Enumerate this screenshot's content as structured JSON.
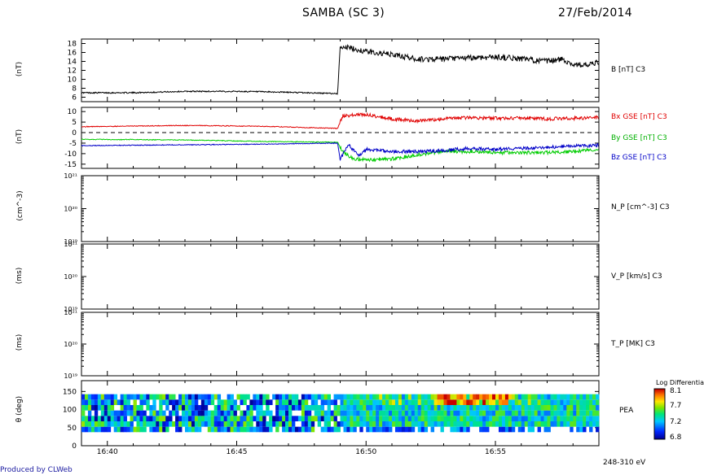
{
  "header": {
    "title": "SAMBA (SC 3)",
    "date": "27/Feb/2014"
  },
  "footer": {
    "credit": "Produced by CLWeb"
  },
  "x_axis": {
    "ticks": [
      "16:40",
      "16:45",
      "16:50",
      "16:55"
    ]
  },
  "panels": [
    {
      "unit": "(nT)",
      "label": "B [nT] C3",
      "ticks": [
        "18",
        "16",
        "14",
        "12",
        "10",
        "8",
        "6"
      ]
    },
    {
      "unit": "(nT)",
      "labels": [
        "Bx GSE [nT] C3",
        "By GSE [nT] C3",
        "Bz GSE [nT] C3"
      ],
      "ticks": [
        "10",
        "5",
        "0",
        "-5",
        "-10",
        "-15"
      ]
    },
    {
      "unit": "(cm^-3)",
      "label": "N_P [cm^-3] C3",
      "ticks": [
        "10²¹",
        "10²⁰",
        "10¹⁹"
      ]
    },
    {
      "unit": "(ms)",
      "label": "V_P [km/s] C3",
      "ticks": [
        "10²¹",
        "10²⁰",
        "10¹⁹"
      ]
    },
    {
      "unit": "(ms)",
      "label": "T_P [MK] C3",
      "ticks": [
        "10²¹",
        "10²⁰",
        "10¹⁹"
      ]
    },
    {
      "unit": "θ (deg)",
      "label": "PEA",
      "sublabel": "248-310 eV",
      "ticks": [
        "150",
        "100",
        "50",
        "0"
      ]
    }
  ],
  "colorbar": {
    "title": "Log Differential",
    "ticks": [
      "8.1",
      "7.7",
      "7.2",
      "6.8"
    ]
  },
  "colors": {
    "bx": "#e00000",
    "by": "#00cc00",
    "bz": "#0000c8",
    "btotal": "#000000",
    "credit": "#1a1aa0"
  },
  "chart_data": [
    {
      "type": "line",
      "ylabel": "(nT)",
      "ylim": [
        5,
        19
      ],
      "xlim": [
        "16:39",
        "16:59"
      ],
      "series": [
        {
          "name": "B [nT] C3",
          "x": [
            "16:39",
            "16:41",
            "16:43",
            "16:45",
            "16:47",
            "16:48.9",
            "16:49.0",
            "16:49.5",
            "16:50",
            "16:51",
            "16:52",
            "16:53",
            "16:54",
            "16:55",
            "16:56",
            "16:57",
            "16:57.6",
            "16:58",
            "16:58.6",
            "16:59"
          ],
          "values": [
            7.0,
            7.0,
            7.3,
            7.3,
            7.1,
            6.8,
            17.5,
            16.8,
            16.2,
            15.5,
            14.5,
            14.5,
            14.8,
            15.0,
            14.6,
            14.0,
            14.5,
            13.3,
            13.2,
            13.8
          ]
        }
      ]
    },
    {
      "type": "line",
      "ylabel": "(nT)",
      "ylim": [
        -17,
        12
      ],
      "xlim": [
        "16:39",
        "16:59"
      ],
      "series": [
        {
          "name": "Bx GSE [nT] C3",
          "x": [
            "16:39",
            "16:43",
            "16:46",
            "16:48.9",
            "16:49.1",
            "16:50",
            "16:51",
            "16:52",
            "16:53",
            "16:54",
            "16:55",
            "16:56",
            "16:57",
            "16:58",
            "16:59"
          ],
          "values": [
            2.8,
            3.4,
            3.0,
            2.0,
            8.0,
            8.6,
            6.5,
            5.5,
            6.5,
            7.2,
            6.8,
            7.0,
            6.5,
            6.8,
            7.2
          ]
        },
        {
          "name": "By GSE [nT] C3",
          "x": [
            "16:39",
            "16:43",
            "16:46",
            "16:48.9",
            "16:49.1",
            "16:49.5",
            "16:50",
            "16:51",
            "16:52",
            "16:53",
            "16:54",
            "16:55",
            "16:56",
            "16:57",
            "16:58",
            "16:59"
          ],
          "values": [
            -3.2,
            -3.5,
            -4.2,
            -4.6,
            -9.0,
            -12.5,
            -13.0,
            -12.5,
            -10.5,
            -9.0,
            -9.0,
            -9.5,
            -9.5,
            -9.5,
            -9.0,
            -8.0
          ]
        },
        {
          "name": "Bz GSE [nT] C3",
          "x": [
            "16:39",
            "16:43",
            "16:46",
            "16:48.9",
            "16:49.0",
            "16:49.3",
            "16:49.7",
            "16:50",
            "16:51",
            "16:52",
            "16:53",
            "16:54",
            "16:55",
            "16:56",
            "16:57",
            "16:58",
            "16:59"
          ],
          "values": [
            -6.2,
            -5.8,
            -5.5,
            -5.0,
            -13.0,
            -5.5,
            -11.0,
            -8.0,
            -9.0,
            -9.0,
            -8.5,
            -7.5,
            -8.0,
            -7.5,
            -7.0,
            -6.5,
            -6.0
          ]
        }
      ]
    },
    {
      "type": "line",
      "ylabel": "(cm^-3)",
      "ylim": [
        "1e19",
        "1e21"
      ],
      "series": []
    },
    {
      "type": "line",
      "ylabel": "(ms)",
      "ylim": [
        "1e19",
        "1e21"
      ],
      "series": []
    },
    {
      "type": "line",
      "ylabel": "(ms)",
      "ylim": [
        "1e19",
        "1e21"
      ],
      "series": []
    },
    {
      "type": "heatmap",
      "ylabel": "θ (deg)",
      "ylim": [
        0,
        180
      ],
      "xlim": [
        "16:39",
        "16:59"
      ],
      "pitch_angle_bins_deg": [
        45,
        60,
        75,
        90,
        105,
        120,
        135
      ],
      "colorbar_range": [
        6.8,
        8.1
      ],
      "description_note": "Before 16:49 mixed 6.8-7.6 levels with gaps; after 16:49 mostly 7.2-7.5 with higher 7.7-8.1 values near 135-150 deg around 16:54-16:56"
    }
  ]
}
